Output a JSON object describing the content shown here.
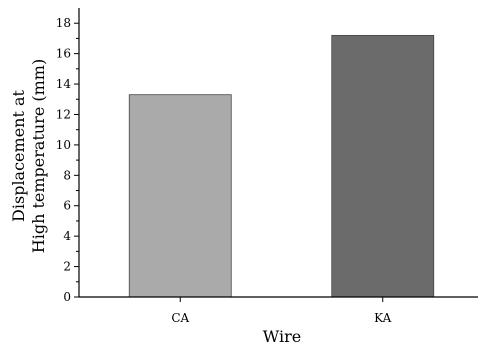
{
  "chart_data": {
    "type": "bar",
    "categories": [
      "CA",
      "KA"
    ],
    "values": [
      13.3,
      17.2
    ],
    "bar_colors": [
      "#aaaaaa",
      "#6b6b6b"
    ],
    "xlabel": "Wire",
    "ylabel_lines": [
      "Displacement at",
      "High temperature (mm)"
    ],
    "ylim": [
      0,
      19
    ],
    "yticks": [
      0,
      2,
      4,
      6,
      8,
      10,
      12,
      14,
      16,
      18
    ],
    "grid": false,
    "legend": "none"
  }
}
